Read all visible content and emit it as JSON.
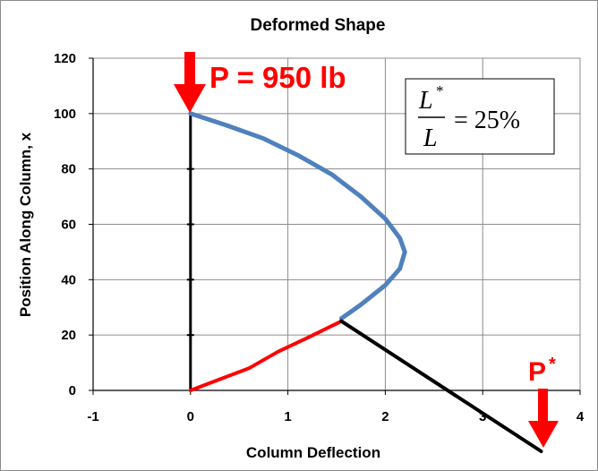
{
  "chart_data": {
    "type": "line",
    "title": "Deformed Shape",
    "xlabel": "Column Deflection",
    "ylabel": "Position Along Column, x",
    "xlim": [
      -1,
      4
    ],
    "ylim": [
      0,
      120
    ],
    "x_ticks": [
      "-1",
      "0",
      "1",
      "2",
      "3",
      "4"
    ],
    "y_ticks": [
      "0",
      "20",
      "40",
      "60",
      "80",
      "100",
      "120"
    ],
    "grid": true,
    "series": [
      {
        "role": "undeformed-column",
        "color": "#000000",
        "x": [
          0,
          0
        ],
        "y": [
          0,
          100
        ]
      },
      {
        "role": "deformed-upper",
        "color": "#4f81bd",
        "x": [
          0,
          0.35,
          0.75,
          1.1,
          1.45,
          1.75,
          2.0,
          2.15,
          2.2,
          2.15,
          2.0,
          1.75,
          1.55
        ],
        "y": [
          100,
          96,
          91,
          85,
          78,
          70,
          62,
          55,
          50,
          44,
          38,
          31,
          26
        ]
      },
      {
        "role": "deformed-lower",
        "color": "#ff0000",
        "x": [
          0,
          0.3,
          0.6,
          0.9,
          1.2,
          1.55
        ],
        "y": [
          0,
          4,
          8,
          14,
          19,
          25
        ]
      },
      {
        "role": "load-line",
        "color": "#000000",
        "x": [
          1.55,
          3.6
        ],
        "y": [
          25,
          -22
        ]
      }
    ],
    "annotations": {
      "load_label": "P = 950 lb",
      "pstar_base": "P",
      "pstar_sup": "*",
      "ratio_numerator": "L",
      "ratio_numerator_sup": "*",
      "ratio_denominator": "L",
      "ratio_value": "= 25%",
      "arrow_color": "#ff0000"
    }
  }
}
